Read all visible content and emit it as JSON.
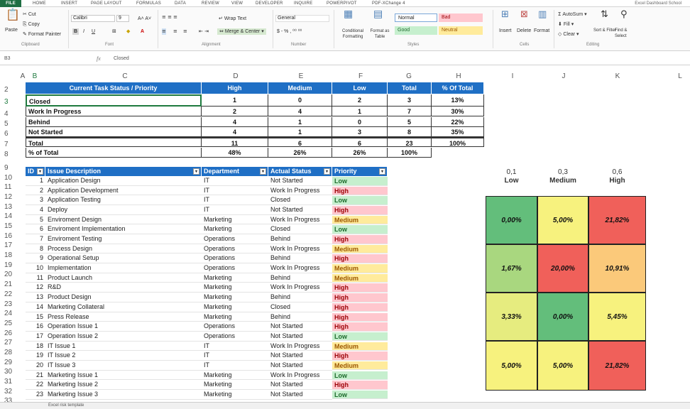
{
  "ribbon_tabs": [
    "FILE",
    "HOME",
    "INSERT",
    "PAGE LAYOUT",
    "FORMULAS",
    "DATA",
    "REVIEW",
    "DEVELOPER",
    "INQUIRE",
    "POWERPIVOT",
    "PDF-XChange 4"
  ],
  "account_label": "Excel Dashboard School",
  "clipboard": {
    "paste": "Paste",
    "cut": "Cut",
    "copy": "Copy",
    "format_painter": "Format Painter",
    "group": "Clipboard"
  },
  "font": {
    "name": "Calibri",
    "size": "9",
    "group": "Font",
    "bold": "B",
    "italic": "I",
    "underline": "U"
  },
  "alignment": {
    "wrap_text": "Wrap Text",
    "merge_center": "Merge & Center",
    "group": "Alignment"
  },
  "number": {
    "format": "General",
    "group": "Number"
  },
  "styles": {
    "conditional": "Conditional Formatting",
    "format_as_table": "Format as Table",
    "normal": "Normal",
    "bad": "Bad",
    "good": "Good",
    "neutral": "Neutral",
    "group": "Styles"
  },
  "cells": {
    "insert": "Insert",
    "delete": "Delete",
    "format": "Format",
    "group": "Cells"
  },
  "editing": {
    "autosum": "AutoSum",
    "fill": "Fill",
    "clear": "Clear",
    "sort": "Sort & Filter",
    "find": "Find & Select",
    "group": "Editing"
  },
  "formula_bar": {
    "name_box": "B3",
    "fx": "fx",
    "value": "Closed"
  },
  "column_headers": [
    "A",
    "B",
    "C",
    "D",
    "E",
    "F",
    "G",
    "H",
    "I",
    "J",
    "K",
    "L"
  ],
  "row_numbers": [
    "2",
    "3",
    "4",
    "5",
    "6",
    "7",
    "8",
    "9",
    "10",
    "11",
    "12",
    "13",
    "14",
    "15",
    "16",
    "17",
    "18",
    "19",
    "20",
    "21",
    "22",
    "23",
    "24",
    "25",
    "26",
    "27",
    "28",
    "29",
    "30",
    "31",
    "32",
    "33"
  ],
  "summary": {
    "headers": [
      "Current Task Status / Priority",
      "High",
      "Medium",
      "Low",
      "Total",
      "% Of Total"
    ],
    "rows": [
      [
        "Closed",
        "1",
        "0",
        "2",
        "3",
        "13%"
      ],
      [
        "Work In Progress",
        "2",
        "4",
        "1",
        "7",
        "30%"
      ],
      [
        "Behind",
        "4",
        "1",
        "0",
        "5",
        "22%"
      ],
      [
        "Not Started",
        "4",
        "1",
        "3",
        "8",
        "35%"
      ],
      [
        "Total",
        "11",
        "6",
        "6",
        "23",
        "100%"
      ],
      [
        "% of Total",
        "48%",
        "26%",
        "26%",
        "100%",
        ""
      ]
    ]
  },
  "issues": {
    "headers": [
      "ID",
      "Issue Description",
      "Department",
      "Actual Status",
      "Priority"
    ],
    "rows": [
      [
        "1",
        "Application Design",
        "IT",
        "Not Started",
        "Low"
      ],
      [
        "2",
        "Application Development",
        "IT",
        "Work In Progress",
        "High"
      ],
      [
        "3",
        "Application Testing",
        "IT",
        "Closed",
        "Low"
      ],
      [
        "4",
        "Deploy",
        "IT",
        "Not Started",
        "High"
      ],
      [
        "5",
        "Enviroment Design",
        "Marketing",
        "Work In Progress",
        "Medium"
      ],
      [
        "6",
        "Enviroment Implementation",
        "Marketing",
        "Closed",
        "Low"
      ],
      [
        "7",
        "Enviroment Testing",
        "Operations",
        "Behind",
        "High"
      ],
      [
        "8",
        "Process Design",
        "Operations",
        "Work In Progress",
        "Medium"
      ],
      [
        "9",
        "Operational Setup",
        "Operations",
        "Behind",
        "High"
      ],
      [
        "10",
        "Implementation",
        "Operations",
        "Work In Progress",
        "Medium"
      ],
      [
        "11",
        "Product Launch",
        "Marketing",
        "Behind",
        "Medium"
      ],
      [
        "12",
        "R&D",
        "Marketing",
        "Work In Progress",
        "High"
      ],
      [
        "13",
        "Product Design",
        "Marketing",
        "Behind",
        "High"
      ],
      [
        "14",
        "Marketing Collateral",
        "Marketing",
        "Closed",
        "High"
      ],
      [
        "15",
        "Press Release",
        "Marketing",
        "Behind",
        "High"
      ],
      [
        "16",
        "Operation Issue 1",
        "Operations",
        "Not Started",
        "High"
      ],
      [
        "17",
        "Operation Issue 2",
        "Operations",
        "Not Started",
        "Low"
      ],
      [
        "18",
        "IT Issue 1",
        "IT",
        "Work In Progress",
        "Medium"
      ],
      [
        "19",
        "IT Issue 2",
        "IT",
        "Not Started",
        "High"
      ],
      [
        "20",
        "IT Issue 3",
        "IT",
        "Not Started",
        "Medium"
      ],
      [
        "21",
        "Marketing Issue 1",
        "Marketing",
        "Work In Progress",
        "Low"
      ],
      [
        "22",
        "Marketing Issue 2",
        "Marketing",
        "Not Started",
        "High"
      ],
      [
        "23",
        "Marketing Issue 3",
        "Marketing",
        "Not Started",
        "Low"
      ]
    ]
  },
  "heatmap": {
    "weights": [
      "0,1",
      "0,3",
      "0,6"
    ],
    "labels": [
      "Low",
      "Medium",
      "High"
    ],
    "cells": [
      [
        "0,00%",
        "5,00%",
        "21,82%"
      ],
      [
        "1,67%",
        "20,00%",
        "10,91%"
      ],
      [
        "3,33%",
        "0,00%",
        "5,45%"
      ],
      [
        "5,00%",
        "5,00%",
        "21,82%"
      ]
    ],
    "colors": [
      [
        "#63be7b",
        "#f7f27e",
        "#f0605a"
      ],
      [
        "#a9d77f",
        "#f0605a",
        "#fbc97a"
      ],
      [
        "#e6ec7f",
        "#63be7b",
        "#f7f27e"
      ],
      [
        "#f7f27e",
        "#f7f27e",
        "#f0605a"
      ]
    ]
  },
  "sheet_tab": "Excel risk template"
}
